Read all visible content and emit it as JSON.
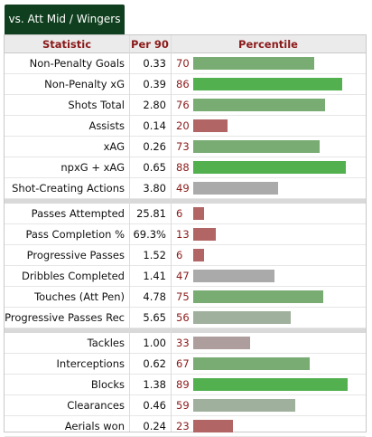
{
  "tab_label": "vs. Att Mid / Wingers",
  "headers": {
    "statistic": "Statistic",
    "per90": "Per 90",
    "percentile": "Percentile"
  },
  "colors": {
    "high": "#52b04f",
    "mid_high": "#78ac73",
    "mid": "#9fb09c",
    "neutral": "#aaaaaa",
    "mid_low": "#ae9d9d",
    "low": "#b16565"
  },
  "groups": [
    {
      "rows": [
        {
          "stat": "Non-Penalty Goals",
          "per90": "0.33",
          "percentile": 70
        },
        {
          "stat": "Non-Penalty xG",
          "per90": "0.39",
          "percentile": 86
        },
        {
          "stat": "Shots Total",
          "per90": "2.80",
          "percentile": 76
        },
        {
          "stat": "Assists",
          "per90": "0.14",
          "percentile": 20
        },
        {
          "stat": "xAG",
          "per90": "0.26",
          "percentile": 73
        },
        {
          "stat": "npxG + xAG",
          "per90": "0.65",
          "percentile": 88
        },
        {
          "stat": "Shot-Creating Actions",
          "per90": "3.80",
          "percentile": 49
        }
      ]
    },
    {
      "rows": [
        {
          "stat": "Passes Attempted",
          "per90": "25.81",
          "percentile": 6
        },
        {
          "stat": "Pass Completion %",
          "per90": "69.3%",
          "percentile": 13
        },
        {
          "stat": "Progressive Passes",
          "per90": "1.52",
          "percentile": 6
        },
        {
          "stat": "Dribbles Completed",
          "per90": "1.41",
          "percentile": 47
        },
        {
          "stat": "Touches (Att Pen)",
          "per90": "4.78",
          "percentile": 75
        },
        {
          "stat": "Progressive Passes Rec",
          "per90": "5.65",
          "percentile": 56
        }
      ]
    },
    {
      "rows": [
        {
          "stat": "Tackles",
          "per90": "1.00",
          "percentile": 33
        },
        {
          "stat": "Interceptions",
          "per90": "0.62",
          "percentile": 67
        },
        {
          "stat": "Blocks",
          "per90": "1.38",
          "percentile": 89
        },
        {
          "stat": "Clearances",
          "per90": "0.46",
          "percentile": 59
        },
        {
          "stat": "Aerials won",
          "per90": "0.24",
          "percentile": 23
        }
      ]
    }
  ]
}
